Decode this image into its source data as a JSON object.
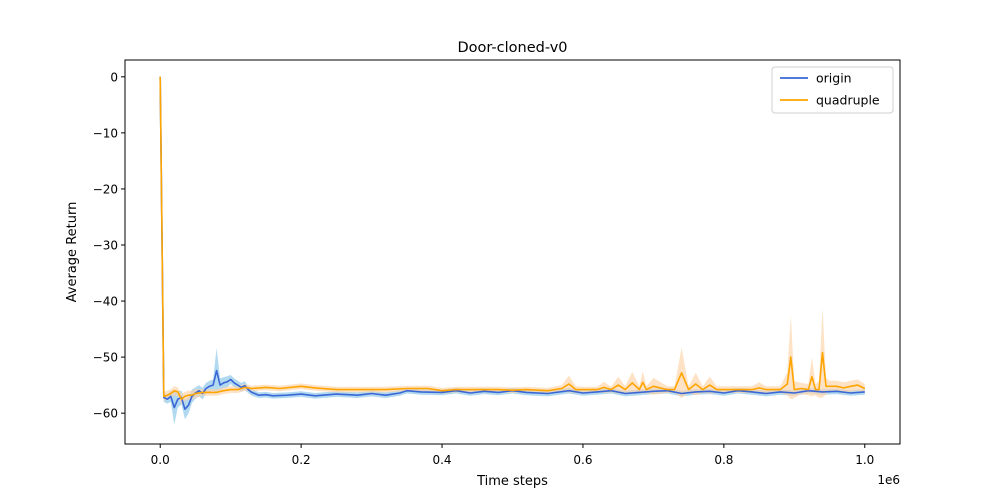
{
  "chart_data": {
    "type": "line",
    "title": "Door-cloned-v0",
    "xlabel": "Time steps",
    "ylabel": "Average Return",
    "x_offset_label": "1e6",
    "xlim": [
      -0.05,
      1.05
    ],
    "ylim": [
      -65.5,
      3
    ],
    "x_ticks": [
      0.0,
      0.2,
      0.4,
      0.6,
      0.8,
      1.0
    ],
    "x_tick_labels": [
      "0.0",
      "0.2",
      "0.4",
      "0.6",
      "0.8",
      "1.0"
    ],
    "y_ticks": [
      0,
      -10,
      -20,
      -30,
      -40,
      -50,
      -60
    ],
    "y_tick_labels": [
      "0",
      "−10",
      "−20",
      "−30",
      "−40",
      "−50",
      "−60"
    ],
    "grid": false,
    "legend_position": "top-right",
    "series": [
      {
        "name": "origin",
        "color": "#3a66d6",
        "band_color": "#87c4e8",
        "x": [
          0.0,
          0.005,
          0.01,
          0.015,
          0.02,
          0.025,
          0.03,
          0.035,
          0.04,
          0.045,
          0.05,
          0.055,
          0.06,
          0.065,
          0.07,
          0.075,
          0.08,
          0.085,
          0.09,
          0.095,
          0.1,
          0.105,
          0.11,
          0.115,
          0.12,
          0.125,
          0.13,
          0.14,
          0.15,
          0.16,
          0.18,
          0.2,
          0.22,
          0.25,
          0.28,
          0.3,
          0.32,
          0.34,
          0.35,
          0.37,
          0.4,
          0.42,
          0.44,
          0.46,
          0.48,
          0.5,
          0.52,
          0.55,
          0.58,
          0.6,
          0.62,
          0.64,
          0.66,
          0.68,
          0.7,
          0.72,
          0.74,
          0.76,
          0.78,
          0.8,
          0.82,
          0.84,
          0.86,
          0.88,
          0.9,
          0.92,
          0.94,
          0.96,
          0.98,
          1.0
        ],
        "y": [
          0,
          -57.2,
          -57.5,
          -57.0,
          -59.0,
          -57.5,
          -57.2,
          -59.3,
          -58.6,
          -57.0,
          -56.4,
          -56.0,
          -56.5,
          -55.6,
          -55.2,
          -55.0,
          -52.4,
          -55.0,
          -54.6,
          -54.4,
          -54.0,
          -54.6,
          -55.0,
          -55.4,
          -55.1,
          -55.8,
          -56.3,
          -56.8,
          -56.7,
          -56.9,
          -56.8,
          -56.6,
          -56.9,
          -56.6,
          -56.8,
          -56.5,
          -56.8,
          -56.4,
          -56.0,
          -56.2,
          -56.3,
          -56.0,
          -56.4,
          -56.1,
          -56.3,
          -56.0,
          -56.3,
          -56.5,
          -56.0,
          -56.4,
          -56.2,
          -56.0,
          -56.5,
          -56.3,
          -56.1,
          -56.0,
          -56.5,
          -56.2,
          -56.1,
          -56.4,
          -56.0,
          -56.2,
          -56.5,
          -56.2,
          -56.4,
          -56.0,
          -56.2,
          -56.1,
          -56.4,
          -56.2
        ],
        "band": [
          0,
          0.8,
          0.8,
          1.0,
          3.0,
          1.5,
          1.2,
          1.8,
          1.5,
          1.2,
          1.0,
          1.0,
          1.0,
          1.0,
          1.0,
          1.0,
          4.0,
          1.2,
          1.0,
          1.0,
          0.8,
          0.8,
          0.8,
          0.8,
          0.8,
          0.6,
          0.6,
          0.5,
          0.5,
          0.5,
          0.5,
          0.5,
          0.5,
          0.5,
          0.5,
          0.5,
          0.5,
          0.5,
          0.5,
          0.5,
          0.5,
          0.5,
          0.5,
          0.5,
          0.5,
          0.5,
          0.5,
          0.5,
          0.5,
          0.5,
          0.5,
          0.5,
          0.5,
          0.5,
          0.5,
          0.5,
          0.5,
          0.5,
          0.5,
          0.5,
          0.5,
          0.5,
          0.5,
          0.5,
          0.5,
          0.5,
          0.5,
          0.5,
          0.5,
          0.5
        ]
      },
      {
        "name": "quadruple",
        "color": "#ffa500",
        "band_color": "#fdd2a8",
        "x": [
          0.0,
          0.005,
          0.01,
          0.015,
          0.02,
          0.025,
          0.03,
          0.035,
          0.04,
          0.045,
          0.05,
          0.06,
          0.07,
          0.08,
          0.09,
          0.1,
          0.11,
          0.12,
          0.13,
          0.15,
          0.17,
          0.2,
          0.22,
          0.25,
          0.28,
          0.3,
          0.32,
          0.35,
          0.38,
          0.4,
          0.42,
          0.45,
          0.48,
          0.5,
          0.52,
          0.55,
          0.57,
          0.58,
          0.59,
          0.6,
          0.62,
          0.63,
          0.64,
          0.65,
          0.66,
          0.67,
          0.68,
          0.685,
          0.69,
          0.7,
          0.72,
          0.73,
          0.74,
          0.75,
          0.76,
          0.77,
          0.78,
          0.79,
          0.8,
          0.82,
          0.84,
          0.85,
          0.86,
          0.88,
          0.89,
          0.895,
          0.9,
          0.91,
          0.92,
          0.925,
          0.93,
          0.935,
          0.94,
          0.945,
          0.95,
          0.96,
          0.97,
          0.98,
          0.99,
          1.0
        ],
        "y": [
          0,
          -57.0,
          -56.8,
          -56.5,
          -56.0,
          -56.2,
          -57.5,
          -57.0,
          -56.8,
          -56.8,
          -56.5,
          -56.3,
          -56.3,
          -56.3,
          -56.0,
          -55.8,
          -55.8,
          -55.4,
          -55.6,
          -55.4,
          -55.6,
          -55.2,
          -55.5,
          -55.8,
          -55.8,
          -55.8,
          -55.8,
          -55.6,
          -55.6,
          -56.0,
          -55.8,
          -55.8,
          -55.8,
          -55.9,
          -55.8,
          -56.0,
          -55.6,
          -54.8,
          -55.8,
          -55.8,
          -55.8,
          -55.4,
          -55.8,
          -55.0,
          -55.8,
          -54.6,
          -55.8,
          -54.5,
          -55.8,
          -55.2,
          -55.8,
          -55.8,
          -52.8,
          -55.8,
          -54.8,
          -55.8,
          -55.0,
          -55.8,
          -55.8,
          -55.8,
          -55.8,
          -55.5,
          -55.8,
          -55.8,
          -54.8,
          -50.0,
          -55.8,
          -55.6,
          -55.8,
          -53.5,
          -55.8,
          -55.8,
          -49.2,
          -55.2,
          -55.2,
          -55.2,
          -55.5,
          -55.2,
          -55.0,
          -55.6
        ],
        "band": [
          0,
          0.8,
          0.8,
          0.8,
          0.8,
          0.8,
          1.0,
          0.8,
          0.8,
          0.8,
          0.8,
          0.6,
          0.6,
          0.6,
          0.6,
          0.6,
          0.6,
          0.6,
          0.5,
          0.5,
          0.5,
          0.5,
          0.5,
          0.5,
          0.5,
          0.5,
          0.5,
          0.5,
          0.5,
          0.5,
          0.5,
          0.5,
          0.5,
          0.5,
          0.5,
          0.5,
          0.6,
          1.5,
          0.6,
          0.5,
          0.5,
          1.0,
          0.5,
          1.5,
          0.6,
          2.0,
          0.6,
          2.0,
          0.6,
          1.5,
          0.6,
          0.6,
          4.5,
          0.6,
          2.0,
          0.6,
          1.5,
          0.6,
          0.6,
          0.6,
          0.6,
          1.0,
          0.6,
          0.6,
          2.0,
          7.5,
          1.5,
          1.0,
          1.0,
          3.5,
          1.0,
          1.5,
          8.0,
          1.5,
          1.0,
          1.0,
          1.0,
          1.0,
          1.0,
          0.8
        ]
      }
    ]
  }
}
